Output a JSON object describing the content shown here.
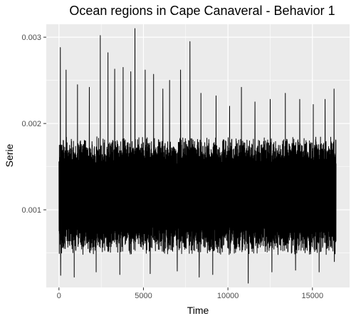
{
  "chart_data": {
    "type": "line",
    "title": "Ocean regions in Cape Canaveral - Behavior 1",
    "xlabel": "Time",
    "ylabel": "Serie",
    "xlim": [
      -750,
      17200
    ],
    "ylim": [
      0.0001,
      0.00315
    ],
    "x_ticks": [
      0,
      5000,
      10000,
      15000
    ],
    "x_tick_labels": [
      "0",
      "5000",
      "10000",
      "15000"
    ],
    "y_ticks": [
      0.001,
      0.002,
      0.003
    ],
    "y_tick_labels": [
      "0.001",
      "0.002",
      "0.003"
    ],
    "x_range": [
      0,
      16400
    ],
    "series": [
      {
        "color": "#000000",
        "band": [
          0.00048,
          0.00185
        ],
        "peaks": [
          {
            "x": 80,
            "y": 0.00288
          },
          {
            "x": 420,
            "y": 0.00262
          },
          {
            "x": 1100,
            "y": 0.00245
          },
          {
            "x": 1800,
            "y": 0.00242
          },
          {
            "x": 2450,
            "y": 0.00302
          },
          {
            "x": 2900,
            "y": 0.00282
          },
          {
            "x": 3300,
            "y": 0.00263
          },
          {
            "x": 3800,
            "y": 0.00265
          },
          {
            "x": 4250,
            "y": 0.0026
          },
          {
            "x": 4500,
            "y": 0.0031
          },
          {
            "x": 5100,
            "y": 0.00262
          },
          {
            "x": 5600,
            "y": 0.00257
          },
          {
            "x": 6150,
            "y": 0.0024
          },
          {
            "x": 6550,
            "y": 0.0025
          },
          {
            "x": 7200,
            "y": 0.00262
          },
          {
            "x": 7750,
            "y": 0.00295
          },
          {
            "x": 8400,
            "y": 0.00235
          },
          {
            "x": 9300,
            "y": 0.00232
          },
          {
            "x": 10100,
            "y": 0.0022
          },
          {
            "x": 10800,
            "y": 0.00242
          },
          {
            "x": 11600,
            "y": 0.00225
          },
          {
            "x": 12500,
            "y": 0.00228
          },
          {
            "x": 13400,
            "y": 0.00235
          },
          {
            "x": 14250,
            "y": 0.00228
          },
          {
            "x": 15050,
            "y": 0.00222
          },
          {
            "x": 15750,
            "y": 0.00228
          },
          {
            "x": 16280,
            "y": 0.0024
          }
        ],
        "troughs": [
          {
            "x": 100,
            "y": 0.00024
          },
          {
            "x": 900,
            "y": 0.00022
          },
          {
            "x": 2200,
            "y": 0.00028
          },
          {
            "x": 3600,
            "y": 0.00025
          },
          {
            "x": 5400,
            "y": 0.00026
          },
          {
            "x": 7000,
            "y": 0.00029
          },
          {
            "x": 8300,
            "y": 0.00022
          },
          {
            "x": 9100,
            "y": 0.00025
          },
          {
            "x": 11200,
            "y": 0.00015
          },
          {
            "x": 12600,
            "y": 0.00028
          },
          {
            "x": 14000,
            "y": 0.0003
          },
          {
            "x": 15400,
            "y": 0.00028
          },
          {
            "x": 16300,
            "y": 0.0004
          }
        ]
      }
    ],
    "grid": true,
    "panel_background": "#ebebeb",
    "grid_color": "#ffffff",
    "legend": "none"
  }
}
